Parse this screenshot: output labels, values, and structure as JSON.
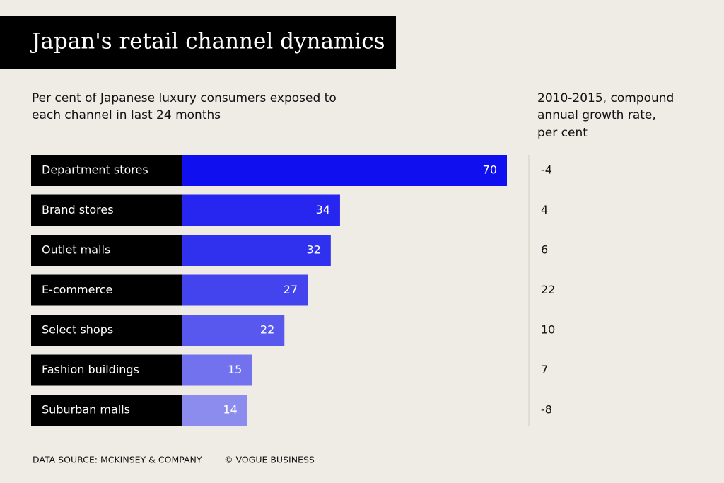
{
  "chart_data": {
    "type": "bar",
    "title": "Japan's retail channel dynamics",
    "subtitle": [
      "Per cent of Japanese luxury consumers exposed to",
      "each channel in last 24 months"
    ],
    "growth_header": [
      "2010-2015, compound",
      "annual growth rate,",
      "per cent"
    ],
    "categories": [
      "Department stores",
      "Brand stores",
      "Outlet malls",
      "E-commerce",
      "Select shops",
      "Fashion buildings",
      "Suburban malls"
    ],
    "values": [
      70,
      34,
      32,
      27,
      22,
      15,
      14
    ],
    "colors": [
      "#0f0ff0",
      "#2626f0",
      "#3030ef",
      "#4444ee",
      "#5858ee",
      "#7272ee",
      "#8c8cee"
    ],
    "growth": [
      -4,
      4,
      6,
      22,
      10,
      7,
      -8
    ],
    "source": "DATA SOURCE: MCKINSEY & COMPANY",
    "credit": "© VOGUE BUSINESS"
  }
}
